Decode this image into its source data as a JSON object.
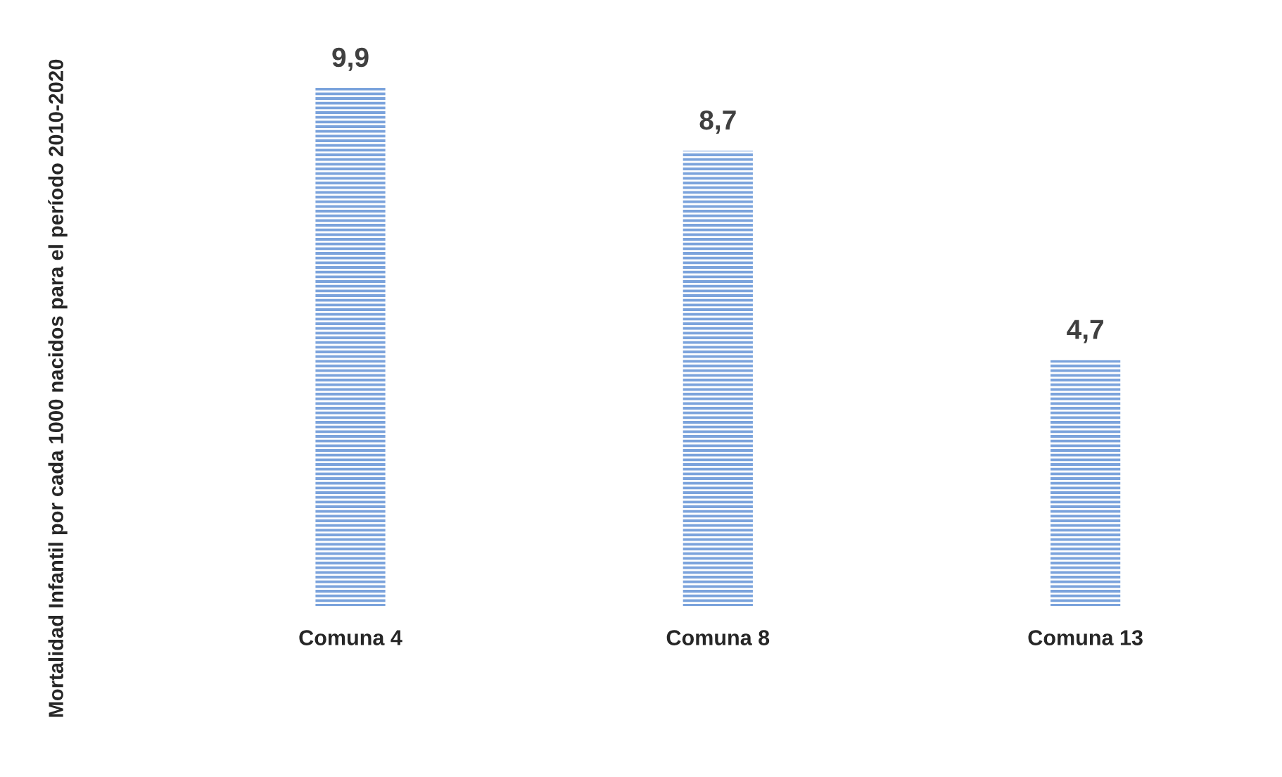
{
  "chart_data": {
    "type": "bar",
    "ylabel": "Mortalidad Infantil por cada 1000 nacidos para el período 2010-2020",
    "categories": [
      "Comuna 4",
      "Comuna 8",
      "Comuna 13"
    ],
    "values": [
      9.9,
      8.7,
      4.7
    ],
    "value_labels": [
      "9,9",
      "8,7",
      "4,7"
    ],
    "color": "#7ba3dc",
    "tick_labels": "x",
    "grid": false,
    "legend": false
  }
}
